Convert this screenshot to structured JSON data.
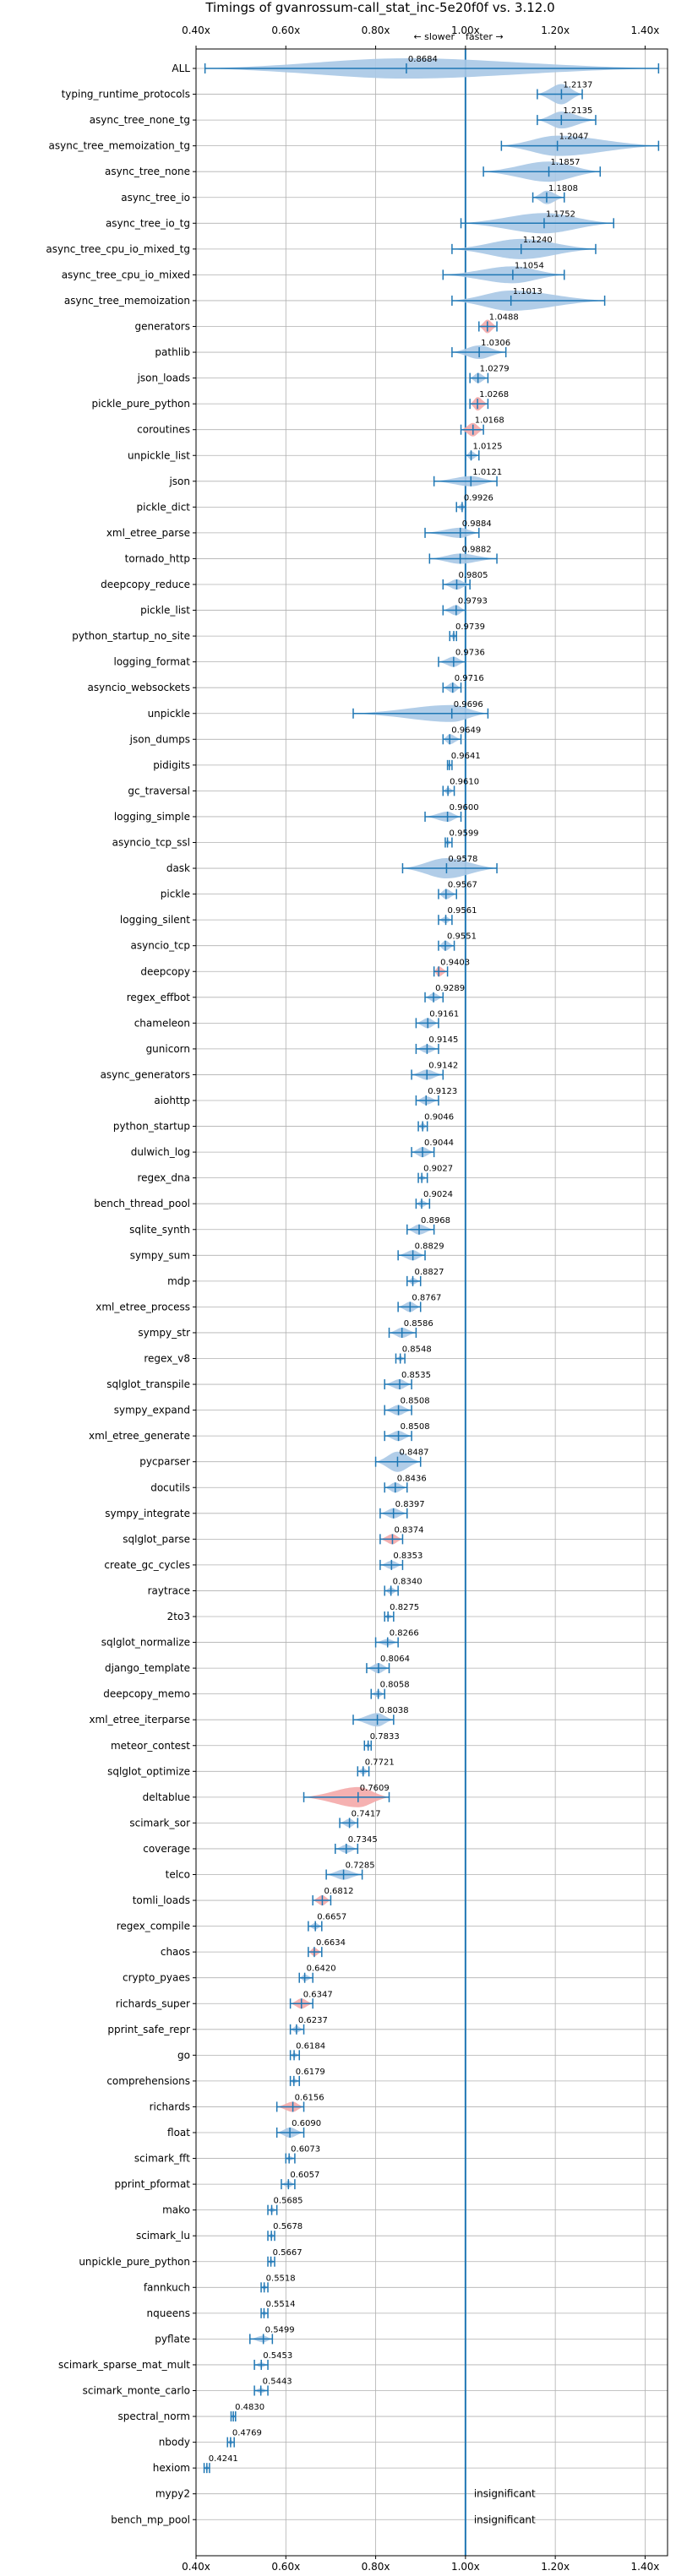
{
  "chart_data": {
    "type": "violin",
    "title": "Timings of gvanrossum-call_stat_inc-5e20f0f vs. 3.12.0",
    "direction_left": "← slower",
    "direction_right": "faster →",
    "xlim": [
      0.4,
      1.45
    ],
    "xticks": [
      0.4,
      0.6,
      0.8,
      1.0,
      1.2,
      1.4
    ],
    "xtick_labels": [
      "0.40x",
      "0.60x",
      "0.80x",
      "1.00x",
      "1.20x",
      "1.40x"
    ],
    "reference_line": 1.0,
    "colors": {
      "normal": "#a9c8e6",
      "highlight": "#f4a9a9",
      "line": "#1f77b4",
      "grid": "#b0b0b0"
    },
    "benchmarks": [
      {
        "name": "ALL",
        "value": 0.8684,
        "label": "0.8684",
        "min": 0.42,
        "max": 1.43,
        "width": 0.1,
        "hl": false
      },
      {
        "name": "typing_runtime_protocols",
        "value": 1.2137,
        "label": "1.2137",
        "min": 1.16,
        "max": 1.26,
        "width": 0.06,
        "hl": false
      },
      {
        "name": "async_tree_none_tg",
        "value": 1.2135,
        "label": "1.2135",
        "min": 1.16,
        "max": 1.29,
        "width": 0.05,
        "hl": false
      },
      {
        "name": "async_tree_memoization_tg",
        "value": 1.2047,
        "label": "1.2047",
        "min": 1.08,
        "max": 1.43,
        "width": 0.06,
        "hl": false
      },
      {
        "name": "async_tree_none",
        "value": 1.1857,
        "label": "1.1857",
        "min": 1.04,
        "max": 1.3,
        "width": 0.06,
        "hl": false
      },
      {
        "name": "async_tree_io",
        "value": 1.1808,
        "label": "1.1808",
        "min": 1.15,
        "max": 1.22,
        "width": 0.04,
        "hl": false
      },
      {
        "name": "async_tree_io_tg",
        "value": 1.1752,
        "label": "1.1752",
        "min": 0.99,
        "max": 1.33,
        "width": 0.06,
        "hl": false
      },
      {
        "name": "async_tree_cpu_io_mixed_tg",
        "value": 1.124,
        "label": "1.1240",
        "min": 0.97,
        "max": 1.29,
        "width": 0.06,
        "hl": false
      },
      {
        "name": "async_tree_cpu_io_mixed",
        "value": 1.1054,
        "label": "1.1054",
        "min": 0.95,
        "max": 1.22,
        "width": 0.05,
        "hl": false
      },
      {
        "name": "async_tree_memoization",
        "value": 1.1013,
        "label": "1.1013",
        "min": 0.97,
        "max": 1.31,
        "width": 0.06,
        "hl": false
      },
      {
        "name": "generators",
        "value": 1.0488,
        "label": "1.0488",
        "min": 1.03,
        "max": 1.07,
        "width": 0.04,
        "hl": true
      },
      {
        "name": "pathlib",
        "value": 1.0306,
        "label": "1.0306",
        "min": 0.97,
        "max": 1.09,
        "width": 0.04,
        "hl": false
      },
      {
        "name": "json_loads",
        "value": 1.0279,
        "label": "1.0279",
        "min": 1.01,
        "max": 1.05,
        "width": 0.03,
        "hl": false
      },
      {
        "name": "pickle_pure_python",
        "value": 1.0268,
        "label": "1.0268",
        "min": 1.01,
        "max": 1.05,
        "width": 0.04,
        "hl": true
      },
      {
        "name": "coroutines",
        "value": 1.0168,
        "label": "1.0168",
        "min": 0.99,
        "max": 1.04,
        "width": 0.04,
        "hl": true
      },
      {
        "name": "unpickle_list",
        "value": 1.0125,
        "label": "1.0125",
        "min": 1.0,
        "max": 1.03,
        "width": 0.025,
        "hl": false
      },
      {
        "name": "json",
        "value": 1.0121,
        "label": "1.0121",
        "min": 0.93,
        "max": 1.07,
        "width": 0.03,
        "hl": false
      },
      {
        "name": "pickle_dict",
        "value": 0.9926,
        "label": "0.9926",
        "min": 0.98,
        "max": 1.0,
        "width": 0.02,
        "hl": false
      },
      {
        "name": "xml_etree_parse",
        "value": 0.9884,
        "label": "0.9884",
        "min": 0.91,
        "max": 1.03,
        "width": 0.03,
        "hl": false
      },
      {
        "name": "tornado_http",
        "value": 0.9882,
        "label": "0.9882",
        "min": 0.92,
        "max": 1.07,
        "width": 0.03,
        "hl": false
      },
      {
        "name": "deepcopy_reduce",
        "value": 0.9805,
        "label": "0.9805",
        "min": 0.95,
        "max": 1.01,
        "width": 0.03,
        "hl": false
      },
      {
        "name": "pickle_list",
        "value": 0.9793,
        "label": "0.9793",
        "min": 0.95,
        "max": 1.0,
        "width": 0.03,
        "hl": false
      },
      {
        "name": "python_startup_no_site",
        "value": 0.9739,
        "label": "0.9739",
        "min": 0.965,
        "max": 0.98,
        "width": 0.02,
        "hl": false
      },
      {
        "name": "logging_format",
        "value": 0.9736,
        "label": "0.9736",
        "min": 0.94,
        "max": 1.0,
        "width": 0.03,
        "hl": false
      },
      {
        "name": "asyncio_websockets",
        "value": 0.9716,
        "label": "0.9716",
        "min": 0.95,
        "max": 0.99,
        "width": 0.03,
        "hl": false
      },
      {
        "name": "unpickle",
        "value": 0.9696,
        "label": "0.9696",
        "min": 0.75,
        "max": 1.05,
        "width": 0.05,
        "hl": false
      },
      {
        "name": "json_dumps",
        "value": 0.9649,
        "label": "0.9649",
        "min": 0.95,
        "max": 0.99,
        "width": 0.03,
        "hl": false
      },
      {
        "name": "pidigits",
        "value": 0.9641,
        "label": "0.9641",
        "min": 0.96,
        "max": 0.97,
        "width": 0.015,
        "hl": false
      },
      {
        "name": "gc_traversal",
        "value": 0.961,
        "label": "0.9610",
        "min": 0.95,
        "max": 0.975,
        "width": 0.02,
        "hl": false
      },
      {
        "name": "logging_simple",
        "value": 0.96,
        "label": "0.9600",
        "min": 0.91,
        "max": 0.99,
        "width": 0.03,
        "hl": false
      },
      {
        "name": "asyncio_tcp_ssl",
        "value": 0.9599,
        "label": "0.9599",
        "min": 0.955,
        "max": 0.97,
        "width": 0.015,
        "hl": false
      },
      {
        "name": "dask",
        "value": 0.9578,
        "label": "0.9578",
        "min": 0.86,
        "max": 1.07,
        "width": 0.06,
        "hl": false
      },
      {
        "name": "pickle",
        "value": 0.9567,
        "label": "0.9567",
        "min": 0.94,
        "max": 0.98,
        "width": 0.03,
        "hl": false
      },
      {
        "name": "logging_silent",
        "value": 0.9561,
        "label": "0.9561",
        "min": 0.94,
        "max": 0.97,
        "width": 0.02,
        "hl": false
      },
      {
        "name": "asyncio_tcp",
        "value": 0.9551,
        "label": "0.9551",
        "min": 0.94,
        "max": 0.975,
        "width": 0.03,
        "hl": false
      },
      {
        "name": "deepcopy",
        "value": 0.9403,
        "label": "0.9403",
        "min": 0.93,
        "max": 0.96,
        "width": 0.03,
        "hl": true
      },
      {
        "name": "regex_effbot",
        "value": 0.9289,
        "label": "0.9289",
        "min": 0.91,
        "max": 0.95,
        "width": 0.025,
        "hl": false
      },
      {
        "name": "chameleon",
        "value": 0.9161,
        "label": "0.9161",
        "min": 0.89,
        "max": 0.94,
        "width": 0.03,
        "hl": false
      },
      {
        "name": "gunicorn",
        "value": 0.9145,
        "label": "0.9145",
        "min": 0.89,
        "max": 0.94,
        "width": 0.025,
        "hl": false
      },
      {
        "name": "async_generators",
        "value": 0.9142,
        "label": "0.9142",
        "min": 0.88,
        "max": 0.95,
        "width": 0.03,
        "hl": false
      },
      {
        "name": "aiohttp",
        "value": 0.9123,
        "label": "0.9123",
        "min": 0.89,
        "max": 0.94,
        "width": 0.025,
        "hl": false
      },
      {
        "name": "python_startup",
        "value": 0.9046,
        "label": "0.9046",
        "min": 0.895,
        "max": 0.915,
        "width": 0.02,
        "hl": false
      },
      {
        "name": "dulwich_log",
        "value": 0.9044,
        "label": "0.9044",
        "min": 0.88,
        "max": 0.93,
        "width": 0.03,
        "hl": false
      },
      {
        "name": "regex_dna",
        "value": 0.9027,
        "label": "0.9027",
        "min": 0.895,
        "max": 0.915,
        "width": 0.015,
        "hl": false
      },
      {
        "name": "bench_thread_pool",
        "value": 0.9024,
        "label": "0.9024",
        "min": 0.89,
        "max": 0.92,
        "width": 0.02,
        "hl": false
      },
      {
        "name": "sqlite_synth",
        "value": 0.8968,
        "label": "0.8968",
        "min": 0.87,
        "max": 0.93,
        "width": 0.03,
        "hl": false
      },
      {
        "name": "sympy_sum",
        "value": 0.8829,
        "label": "0.8829",
        "min": 0.85,
        "max": 0.91,
        "width": 0.03,
        "hl": false
      },
      {
        "name": "mdp",
        "value": 0.8827,
        "label": "0.8827",
        "min": 0.87,
        "max": 0.9,
        "width": 0.02,
        "hl": false
      },
      {
        "name": "xml_etree_process",
        "value": 0.8767,
        "label": "0.8767",
        "min": 0.85,
        "max": 0.9,
        "width": 0.03,
        "hl": false
      },
      {
        "name": "sympy_str",
        "value": 0.8586,
        "label": "0.8586",
        "min": 0.83,
        "max": 0.89,
        "width": 0.03,
        "hl": false
      },
      {
        "name": "regex_v8",
        "value": 0.8548,
        "label": "0.8548",
        "min": 0.845,
        "max": 0.865,
        "width": 0.015,
        "hl": false
      },
      {
        "name": "sqlglot_transpile",
        "value": 0.8535,
        "label": "0.8535",
        "min": 0.82,
        "max": 0.88,
        "width": 0.03,
        "hl": false
      },
      {
        "name": "sympy_expand",
        "value": 0.8508,
        "label": "0.8508",
        "min": 0.82,
        "max": 0.88,
        "width": 0.03,
        "hl": false
      },
      {
        "name": "xml_etree_generate",
        "value": 0.8508,
        "label": "0.8508",
        "min": 0.82,
        "max": 0.88,
        "width": 0.03,
        "hl": false
      },
      {
        "name": "pycparser",
        "value": 0.8487,
        "label": "0.8487",
        "min": 0.8,
        "max": 0.9,
        "width": 0.06,
        "hl": false
      },
      {
        "name": "docutils",
        "value": 0.8436,
        "label": "0.8436",
        "min": 0.82,
        "max": 0.87,
        "width": 0.03,
        "hl": false
      },
      {
        "name": "sympy_integrate",
        "value": 0.8397,
        "label": "0.8397",
        "min": 0.81,
        "max": 0.87,
        "width": 0.03,
        "hl": false
      },
      {
        "name": "sqlglot_parse",
        "value": 0.8374,
        "label": "0.8374",
        "min": 0.81,
        "max": 0.86,
        "width": 0.03,
        "hl": true
      },
      {
        "name": "create_gc_cycles",
        "value": 0.8353,
        "label": "0.8353",
        "min": 0.81,
        "max": 0.86,
        "width": 0.025,
        "hl": false
      },
      {
        "name": "raytrace",
        "value": 0.834,
        "label": "0.8340",
        "min": 0.82,
        "max": 0.85,
        "width": 0.02,
        "hl": false
      },
      {
        "name": "2to3",
        "value": 0.8275,
        "label": "0.8275",
        "min": 0.82,
        "max": 0.84,
        "width": 0.015,
        "hl": false
      },
      {
        "name": "sqlglot_normalize",
        "value": 0.8266,
        "label": "0.8266",
        "min": 0.8,
        "max": 0.85,
        "width": 0.02,
        "hl": false
      },
      {
        "name": "django_template",
        "value": 0.8064,
        "label": "0.8064",
        "min": 0.78,
        "max": 0.83,
        "width": 0.03,
        "hl": false
      },
      {
        "name": "deepcopy_memo",
        "value": 0.8058,
        "label": "0.8058",
        "min": 0.79,
        "max": 0.82,
        "width": 0.02,
        "hl": false
      },
      {
        "name": "xml_etree_iterparse",
        "value": 0.8038,
        "label": "0.8038",
        "min": 0.75,
        "max": 0.84,
        "width": 0.04,
        "hl": false
      },
      {
        "name": "meteor_contest",
        "value": 0.7833,
        "label": "0.7833",
        "min": 0.775,
        "max": 0.79,
        "width": 0.015,
        "hl": false
      },
      {
        "name": "sqlglot_optimize",
        "value": 0.7721,
        "label": "0.7721",
        "min": 0.76,
        "max": 0.785,
        "width": 0.02,
        "hl": false
      },
      {
        "name": "deltablue",
        "value": 0.7609,
        "label": "0.7609",
        "min": 0.64,
        "max": 0.83,
        "width": 0.07,
        "hl": true
      },
      {
        "name": "scimark_sor",
        "value": 0.7417,
        "label": "0.7417",
        "min": 0.72,
        "max": 0.76,
        "width": 0.025,
        "hl": false
      },
      {
        "name": "coverage",
        "value": 0.7345,
        "label": "0.7345",
        "min": 0.71,
        "max": 0.76,
        "width": 0.025,
        "hl": false
      },
      {
        "name": "telco",
        "value": 0.7285,
        "label": "0.7285",
        "min": 0.69,
        "max": 0.77,
        "width": 0.03,
        "hl": false
      },
      {
        "name": "tomli_loads",
        "value": 0.6812,
        "label": "0.6812",
        "min": 0.66,
        "max": 0.7,
        "width": 0.03,
        "hl": true
      },
      {
        "name": "regex_compile",
        "value": 0.6657,
        "label": "0.6657",
        "min": 0.65,
        "max": 0.68,
        "width": 0.02,
        "hl": false
      },
      {
        "name": "chaos",
        "value": 0.6634,
        "label": "0.6634",
        "min": 0.65,
        "max": 0.68,
        "width": 0.025,
        "hl": true
      },
      {
        "name": "crypto_pyaes",
        "value": 0.642,
        "label": "0.6420",
        "min": 0.63,
        "max": 0.66,
        "width": 0.02,
        "hl": false
      },
      {
        "name": "richards_super",
        "value": 0.6347,
        "label": "0.6347",
        "min": 0.61,
        "max": 0.66,
        "width": 0.03,
        "hl": true
      },
      {
        "name": "pprint_safe_repr",
        "value": 0.6237,
        "label": "0.6237",
        "min": 0.61,
        "max": 0.64,
        "width": 0.02,
        "hl": false
      },
      {
        "name": "go",
        "value": 0.6184,
        "label": "0.6184",
        "min": 0.61,
        "max": 0.63,
        "width": 0.015,
        "hl": false
      },
      {
        "name": "comprehensions",
        "value": 0.6179,
        "label": "0.6179",
        "min": 0.61,
        "max": 0.63,
        "width": 0.015,
        "hl": false
      },
      {
        "name": "richards",
        "value": 0.6156,
        "label": "0.6156",
        "min": 0.58,
        "max": 0.64,
        "width": 0.03,
        "hl": true
      },
      {
        "name": "float",
        "value": 0.609,
        "label": "0.6090",
        "min": 0.58,
        "max": 0.64,
        "width": 0.03,
        "hl": false
      },
      {
        "name": "scimark_fft",
        "value": 0.6073,
        "label": "0.6073",
        "min": 0.6,
        "max": 0.62,
        "width": 0.015,
        "hl": false
      },
      {
        "name": "pprint_pformat",
        "value": 0.6057,
        "label": "0.6057",
        "min": 0.59,
        "max": 0.62,
        "width": 0.02,
        "hl": false
      },
      {
        "name": "mako",
        "value": 0.5685,
        "label": "0.5685",
        "min": 0.56,
        "max": 0.58,
        "width": 0.015,
        "hl": false
      },
      {
        "name": "scimark_lu",
        "value": 0.5678,
        "label": "0.5678",
        "min": 0.56,
        "max": 0.575,
        "width": 0.012,
        "hl": false
      },
      {
        "name": "unpickle_pure_python",
        "value": 0.5667,
        "label": "0.5667",
        "min": 0.56,
        "max": 0.575,
        "width": 0.012,
        "hl": false
      },
      {
        "name": "fannkuch",
        "value": 0.5518,
        "label": "0.5518",
        "min": 0.545,
        "max": 0.56,
        "width": 0.012,
        "hl": false
      },
      {
        "name": "nqueens",
        "value": 0.5514,
        "label": "0.5514",
        "min": 0.545,
        "max": 0.56,
        "width": 0.012,
        "hl": false
      },
      {
        "name": "pyflate",
        "value": 0.5499,
        "label": "0.5499",
        "min": 0.52,
        "max": 0.57,
        "width": 0.02,
        "hl": false
      },
      {
        "name": "scimark_sparse_mat_mult",
        "value": 0.5453,
        "label": "0.5453",
        "min": 0.53,
        "max": 0.56,
        "width": 0.015,
        "hl": false
      },
      {
        "name": "scimark_monte_carlo",
        "value": 0.5443,
        "label": "0.5443",
        "min": 0.53,
        "max": 0.56,
        "width": 0.015,
        "hl": false
      },
      {
        "name": "spectral_norm",
        "value": 0.483,
        "label": "0.4830",
        "min": 0.478,
        "max": 0.488,
        "width": 0.01,
        "hl": false
      },
      {
        "name": "nbody",
        "value": 0.4769,
        "label": "0.4769",
        "min": 0.47,
        "max": 0.485,
        "width": 0.01,
        "hl": false
      },
      {
        "name": "hexiom",
        "value": 0.4241,
        "label": "0.4241",
        "min": 0.418,
        "max": 0.43,
        "width": 0.01,
        "hl": false
      },
      {
        "name": "mypy2",
        "value": null,
        "label": "insignificant",
        "hl": false
      },
      {
        "name": "bench_mp_pool",
        "value": null,
        "label": "insignificant",
        "hl": false
      }
    ]
  }
}
